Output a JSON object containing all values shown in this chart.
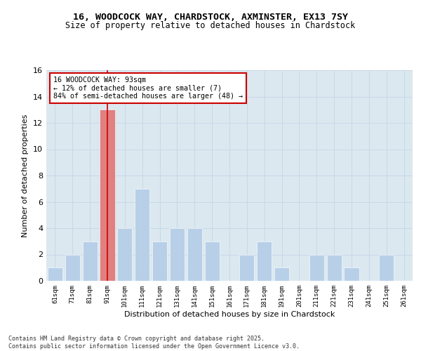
{
  "title_line1": "16, WOODCOCK WAY, CHARDSTOCK, AXMINSTER, EX13 7SY",
  "title_line2": "Size of property relative to detached houses in Chardstock",
  "xlabel": "Distribution of detached houses by size in Chardstock",
  "ylabel": "Number of detached properties",
  "categories": [
    "61sqm",
    "71sqm",
    "81sqm",
    "91sqm",
    "101sqm",
    "111sqm",
    "121sqm",
    "131sqm",
    "141sqm",
    "151sqm",
    "161sqm",
    "171sqm",
    "181sqm",
    "191sqm",
    "201sqm",
    "211sqm",
    "221sqm",
    "231sqm",
    "241sqm",
    "251sqm",
    "261sqm"
  ],
  "values": [
    1,
    2,
    3,
    13,
    4,
    7,
    3,
    4,
    4,
    3,
    0,
    2,
    3,
    1,
    0,
    2,
    2,
    1,
    0,
    2,
    0
  ],
  "bar_color": "#b8cfe8",
  "highlight_bar_index": 3,
  "highlight_bar_color": "#e08080",
  "vline_color": "#cc0000",
  "annotation_text": "16 WOODCOCK WAY: 93sqm\n← 12% of detached houses are smaller (7)\n84% of semi-detached houses are larger (48) →",
  "annotation_box_edgecolor": "#cc0000",
  "annotation_box_facecolor": "#ffffff",
  "ylim": [
    0,
    16
  ],
  "yticks": [
    0,
    2,
    4,
    6,
    8,
    10,
    12,
    14,
    16
  ],
  "grid_color": "#c8d8e8",
  "background_color": "#dce8f0",
  "footer_text": "Contains HM Land Registry data © Crown copyright and database right 2025.\nContains public sector information licensed under the Open Government Licence v3.0.",
  "title_fontsize": 9.5,
  "subtitle_fontsize": 8.5,
  "ylabel_fontsize": 8,
  "xlabel_fontsize": 8
}
